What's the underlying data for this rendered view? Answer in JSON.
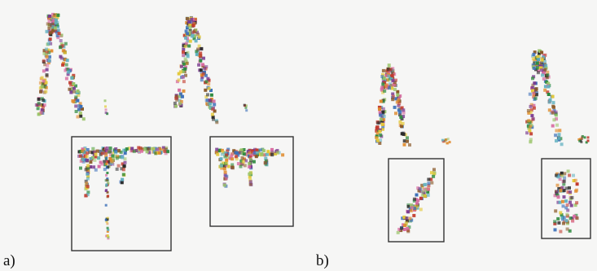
{
  "labels": {
    "a": "a)",
    "b": "b)"
  }
}
